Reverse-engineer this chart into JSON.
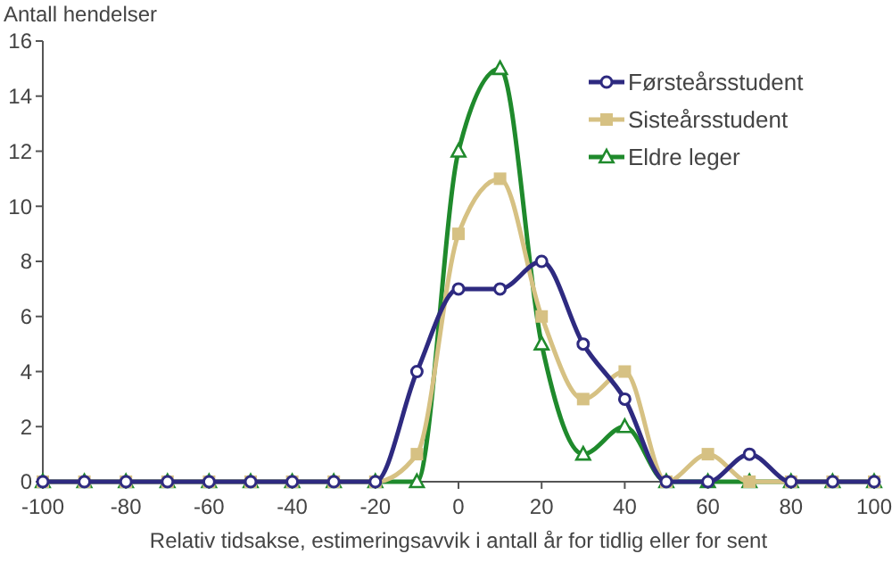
{
  "chart_data": {
    "type": "line",
    "ylabel": "Antall hendelser",
    "xlabel": "Relativ tidsakse, estimeringsavvik i antall år for tidlig eller for sent",
    "x": [
      -100,
      -90,
      -80,
      -70,
      -60,
      -50,
      -40,
      -30,
      -20,
      -10,
      0,
      10,
      20,
      30,
      40,
      50,
      60,
      70,
      80,
      90,
      100
    ],
    "series": [
      {
        "name": "Førsteårsstudent",
        "color": "#2e2a80",
        "marker": "circle",
        "values": [
          0,
          0,
          0,
          0,
          0,
          0,
          0,
          0,
          0,
          4,
          7,
          7,
          8,
          5,
          3,
          0,
          0,
          1,
          0,
          0,
          0
        ]
      },
      {
        "name": "Sisteårsstudent",
        "color": "#d6c183",
        "marker": "square",
        "values": [
          0,
          0,
          0,
          0,
          0,
          0,
          0,
          0,
          0,
          1,
          9,
          11,
          6,
          3,
          4,
          0,
          1,
          0,
          0,
          0,
          0
        ]
      },
      {
        "name": "Eldre leger",
        "color": "#1f8a2c",
        "marker": "triangle",
        "values": [
          0,
          0,
          0,
          0,
          0,
          0,
          0,
          0,
          0,
          0,
          12,
          15,
          5,
          1,
          2,
          0,
          0,
          0,
          0,
          0,
          0
        ]
      }
    ],
    "xlim": [
      -100,
      100
    ],
    "xticks": [
      -100,
      -80,
      -60,
      -40,
      -20,
      0,
      20,
      40,
      60,
      80,
      100
    ],
    "ylim": [
      0,
      16
    ],
    "yticks": [
      0,
      2,
      4,
      6,
      8,
      10,
      12,
      14,
      16
    ],
    "grid": false,
    "legend": "top right",
    "line_style": "solid"
  }
}
